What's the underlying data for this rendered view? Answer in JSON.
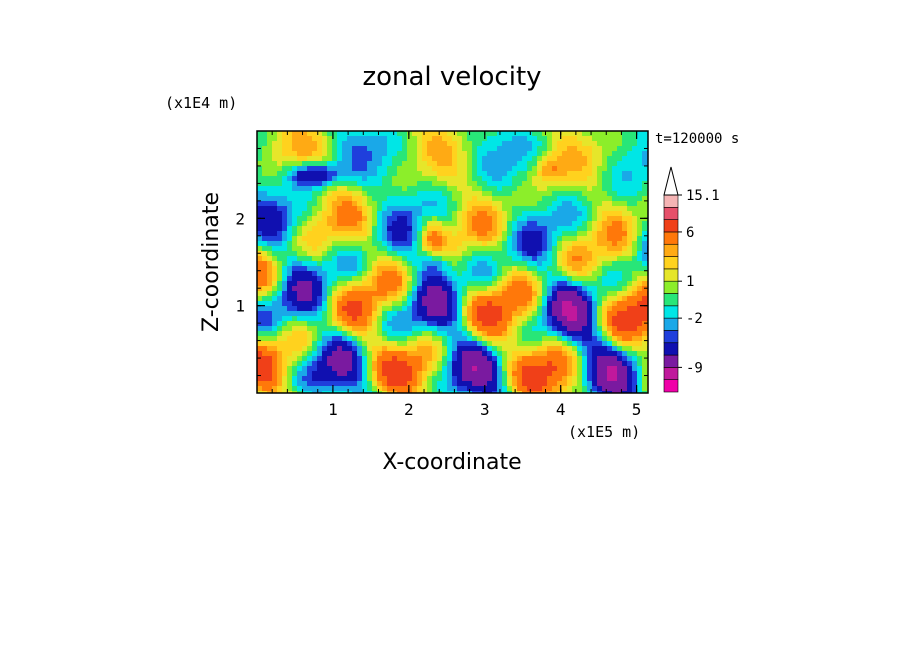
{
  "chart_data": {
    "type": "heatmap",
    "title": "zonal velocity",
    "xlabel": "X-coordinate",
    "ylabel": "Z-coordinate",
    "x_unit": "(x1E5 m)",
    "y_unit": "(x1E4 m)",
    "time_label": "t=120000 s",
    "xlim": [
      0,
      5.15
    ],
    "ylim": [
      0,
      3.0
    ],
    "x_ticks": [
      1,
      2,
      3,
      4,
      5
    ],
    "y_ticks": [
      1,
      2
    ],
    "x_tick_labels": [
      "1",
      "2",
      "3",
      "4",
      "5"
    ],
    "y_tick_labels": [
      "1",
      "2"
    ],
    "colorbar": {
      "levels": [
        -15,
        -12,
        -9,
        -6,
        -4,
        -3,
        -2,
        -1,
        0,
        1,
        2,
        3,
        4,
        6,
        9,
        12,
        15.1
      ],
      "tick_labels": [
        {
          "value": 15.1,
          "label": "15.1"
        },
        {
          "value": 6,
          "label": "6"
        },
        {
          "value": 1,
          "label": "1"
        },
        {
          "value": -2,
          "label": "-2"
        },
        {
          "value": -9,
          "label": "-9"
        }
      ],
      "colors": [
        "#f000a8",
        "#c0189c",
        "#7a1aa0",
        "#1010b0",
        "#1f3fdc",
        "#1aa8e8",
        "#00e6e6",
        "#28e678",
        "#8cee2a",
        "#e6e62a",
        "#ffd21e",
        "#ffaa14",
        "#ff780a",
        "#f04018",
        "#e6506a",
        "#f5b4b4"
      ],
      "extend_max": true
    }
  }
}
